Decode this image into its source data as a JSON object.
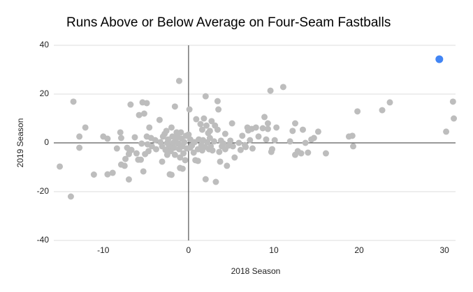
{
  "chart_data": {
    "type": "scatter",
    "title": "Runs Above or Below Average on Four-Seam Fastballs",
    "x_label": "2018 Season",
    "y_label": "2019 Season",
    "xlim": [
      -15.8,
      31.3
    ],
    "ylim": [
      -40,
      40
    ],
    "xticks": [
      -10,
      0,
      10,
      20,
      30
    ],
    "yticks": [
      -40,
      -20,
      0,
      20,
      40
    ],
    "grid": true,
    "series": [
      {
        "color": "#bdbdbd",
        "x": [
          -15.1,
          -13.8,
          -13.5,
          -12.8,
          -12.8,
          -12.1,
          -11.1,
          -10,
          -9.5,
          -9.5,
          -8.9,
          -8.4,
          -8,
          -7.9,
          -7.9,
          -7.5,
          -7.4,
          -7.2,
          -7,
          -7,
          -6.9,
          -6.8,
          -6.7,
          -6.3,
          -6.1,
          -5.9,
          -5.8,
          -5.6,
          -5.5,
          -5.4,
          -5.3,
          -5.2,
          -5.1,
          -4.9,
          -4.9,
          -4.8,
          -4.7,
          -4.6,
          -4.4,
          -4.3,
          -3.9,
          -3.8,
          -3.4,
          -3.3,
          -3.1,
          -3.1,
          -3,
          -2.8,
          -2.7,
          -2.6,
          -2.5,
          -2.5,
          -2.4,
          -2.3,
          -2.2,
          -2.1,
          -2,
          -2,
          -1.9,
          -1.8,
          -1.7,
          -1.6,
          -1.6,
          -1.5,
          -1.4,
          -1.3,
          -1.2,
          -1.1,
          -1.1,
          -1,
          -1,
          -0.9,
          -0.8,
          -0.7,
          -0.7,
          -0.6,
          -0.5,
          -0.4,
          -0.3,
          -0.2,
          0,
          0.1,
          0.2,
          0.2,
          0.4,
          0.6,
          0.7,
          0.8,
          0.9,
          1.1,
          1.1,
          1.2,
          1.4,
          1.5,
          1.6,
          1.6,
          1.7,
          1.8,
          1.9,
          2,
          2,
          2.1,
          2.2,
          2.3,
          2.4,
          2.5,
          2.5,
          2.6,
          2.7,
          2.8,
          3,
          3.1,
          3.2,
          3.4,
          3.4,
          3.5,
          3.6,
          3.7,
          3.8,
          3.9,
          4.1,
          4.3,
          4.3,
          4.5,
          4.7,
          4.9,
          5.1,
          5.2,
          5.4,
          5.9,
          6.1,
          6.3,
          6.6,
          6.7,
          6.9,
          7,
          7.2,
          7.4,
          7.5,
          7.9,
          8.2,
          8.7,
          8.9,
          9.1,
          9.3,
          9.3,
          9.6,
          9.7,
          9.8,
          10.1,
          10.3,
          11.1,
          11.9,
          12.2,
          12.5,
          12.5,
          12.8,
          13.2,
          13.4,
          13.7,
          14,
          14.4,
          14.7,
          15.2,
          16.1,
          18.8,
          19.2,
          19.3,
          19.8,
          22.7,
          23.6,
          30.2,
          31,
          31.1
        ],
        "values": [
          -9.7,
          -22,
          16.9,
          -2,
          2.6,
          6.3,
          -13,
          2.6,
          1.7,
          -12.9,
          -12.3,
          -2.3,
          4.3,
          2,
          -8.9,
          -9.4,
          -6.6,
          -2,
          -15,
          -4.6,
          -3.4,
          15.7,
          -2.9,
          2.3,
          -4.3,
          -6.9,
          11.4,
          -6.9,
          -0.3,
          16.6,
          -11.7,
          12,
          -4.6,
          16.3,
          2.6,
          -0.6,
          -3.4,
          6.3,
          2,
          -1.4,
          1.1,
          -2.6,
          9.4,
          0.3,
          -1.4,
          -7.7,
          2.6,
          3.7,
          -2.9,
          4.9,
          0,
          -4.9,
          1.4,
          -1.4,
          -12.9,
          -3.4,
          -13.1,
          6.3,
          2.6,
          0,
          -2,
          14.9,
          -4.9,
          1.4,
          4.3,
          2.9,
          -0.3,
          25.4,
          -2.6,
          -10.3,
          -6,
          4.3,
          1.7,
          -1.4,
          -10.6,
          -4.3,
          0.3,
          -7.1,
          2.9,
          -2.3,
          3.4,
          13.7,
          1.4,
          -2,
          -1.1,
          -4,
          0.3,
          -7.1,
          9.7,
          -2.6,
          -7.4,
          1.4,
          7.7,
          -0.9,
          5.4,
          -3.1,
          1.1,
          10,
          -1.7,
          -14.9,
          19.1,
          7.1,
          0.3,
          4,
          -2.6,
          2,
          4.9,
          -1.4,
          8.9,
          -3.1,
          0.6,
          7.1,
          -16,
          5.4,
          17.1,
          13.7,
          -3.7,
          -7.7,
          0.9,
          -1.4,
          -0.3,
          3.7,
          -2.6,
          -9.4,
          -1.1,
          0.9,
          8,
          -1.4,
          -6,
          0,
          -2.9,
          2.9,
          -0.9,
          -1.7,
          6.3,
          5.1,
          1.1,
          5.7,
          -2.3,
          6.3,
          2.6,
          6,
          10.6,
          1.4,
          8,
          5.7,
          21.4,
          -3.7,
          -2.6,
          1.1,
          6.3,
          22.9,
          0.6,
          4.9,
          8,
          -4.9,
          -3.4,
          -4.3,
          5.4,
          0,
          -4,
          1.4,
          2,
          4.6,
          -4.3,
          2.6,
          2.9,
          -1.4,
          12.9,
          13.4,
          16.6,
          4.6,
          16.9,
          10
        ]
      },
      {
        "color": "#4285f4",
        "x": [
          29.4
        ],
        "values": [
          34.3
        ]
      }
    ]
  }
}
